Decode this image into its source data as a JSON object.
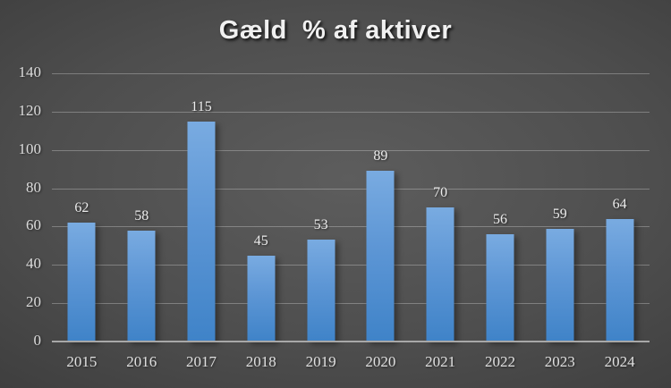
{
  "title": "Gæld  % af aktiver",
  "chart_data": {
    "type": "bar",
    "title": "Gæld  % af aktiver",
    "categories": [
      "2015",
      "2016",
      "2017",
      "2018",
      "2019",
      "2020",
      "2021",
      "2022",
      "2023",
      "2024"
    ],
    "values": [
      62,
      58,
      115,
      45,
      53,
      89,
      70,
      56,
      59,
      64
    ],
    "xlabel": "",
    "ylabel": "",
    "ylim": [
      0,
      140
    ],
    "ytick_step": 20,
    "ytick_labels": [
      "0",
      "20",
      "40",
      "60",
      "80",
      "100",
      "120",
      "140"
    ],
    "grid": true,
    "legend": false,
    "data_labels": true
  },
  "colors": {
    "background_center": "#5d5d5d",
    "background_edge": "#262626",
    "bar_gradient_top": "#79abe1",
    "bar_gradient_bottom": "#3f83c8",
    "gridline": "#8f8f8f",
    "axis_line": "#a8a8a8",
    "tick_label": "#dcdcdc",
    "data_label": "#ececec",
    "title": "#f0f0f0"
  }
}
